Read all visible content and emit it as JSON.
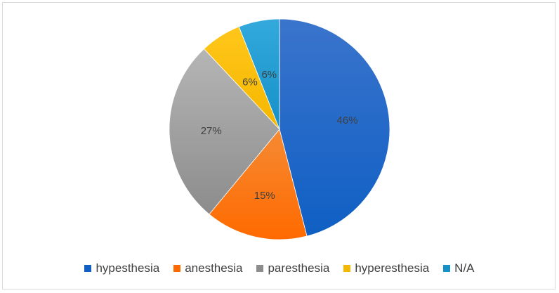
{
  "chart_data": {
    "type": "pie",
    "title": "",
    "start_angle_deg": 0,
    "direction": "clockwise",
    "legend_position": "bottom",
    "slices": [
      {
        "label": "hypesthesia",
        "value": 46,
        "display": "46%",
        "color": "#3a74cc",
        "color_dark": "#0f5fc4"
      },
      {
        "label": "anesthesia",
        "value": 15,
        "display": "15%",
        "color": "#f58a33",
        "color_dark": "#ff6a00"
      },
      {
        "label": "paresthesia",
        "value": 27,
        "display": "27%",
        "color": "#b5b5b5",
        "color_dark": "#8c8c8c"
      },
      {
        "label": "hyperesthesia",
        "value": 6,
        "display": "6%",
        "color": "#ffc61a",
        "color_dark": "#f5b700"
      },
      {
        "label": "N/A",
        "value": 6,
        "display": "6%",
        "color": "#33a9dc",
        "color_dark": "#1590c8"
      }
    ]
  }
}
